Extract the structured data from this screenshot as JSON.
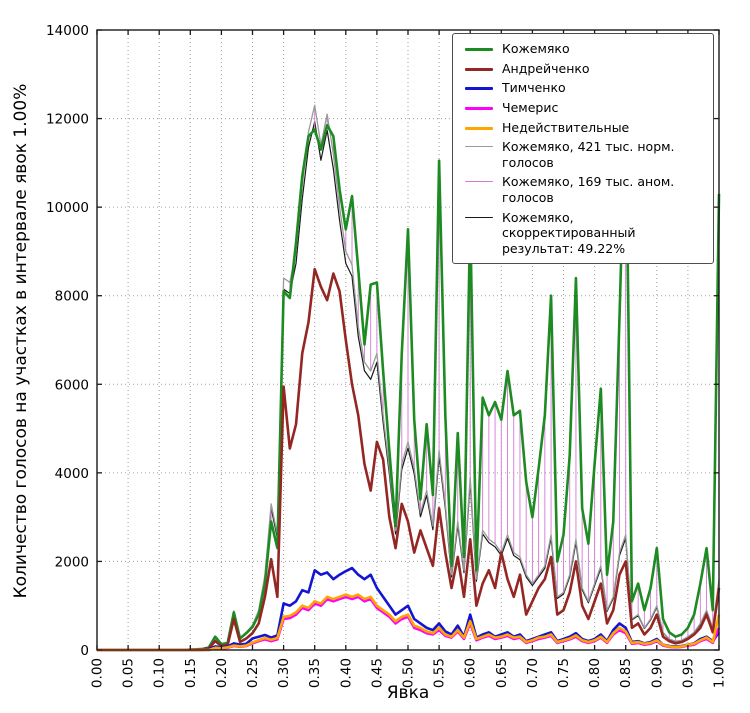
{
  "figure": {
    "xlabel": "Явка",
    "ylabel": "Количество голосов на участках в интервале явок 1.00%"
  },
  "legend": {
    "items": [
      {
        "label": "Кожемяко",
        "color": "#1e8b22",
        "lw": 3
      },
      {
        "label": "Андрейченко",
        "color": "#942723",
        "lw": 3
      },
      {
        "label": "Тимченко",
        "color": "#1414d4",
        "lw": 3
      },
      {
        "label": "Чемерис",
        "color": "#ff00ff",
        "lw": 3
      },
      {
        "label": "Недействительные",
        "color": "#ffa500",
        "lw": 3
      },
      {
        "label": "Кожемяко, 421 тыс. норм. голосов",
        "color": "#9a9a9a",
        "lw": 1.5
      },
      {
        "label": "Кожемяко, 169 тыс. аном. голосов",
        "color": "#d678d6",
        "lw": 1.5
      },
      {
        "label": "Кожемяко, скорректированный результат: 49.22%",
        "color": "#1a1a1a",
        "lw": 1.5
      }
    ]
  },
  "chart_data": {
    "type": "line",
    "title": "",
    "xlabel": "Явка",
    "ylabel": "Количество голосов на участках в интервале явок 1.00%",
    "xlim": [
      0.0,
      1.0
    ],
    "ylim": [
      0,
      14000
    ],
    "grid": true,
    "legend_position": "upper right",
    "x_tick_labels": [
      "0.00",
      "0.05",
      "0.10",
      "0.15",
      "0.20",
      "0.25",
      "0.30",
      "0.35",
      "0.40",
      "0.45",
      "0.50",
      "0.55",
      "0.60",
      "0.65",
      "0.70",
      "0.75",
      "0.80",
      "0.85",
      "0.90",
      "0.95",
      "1.00"
    ],
    "y_ticks": [
      0,
      2000,
      4000,
      6000,
      8000,
      10000,
      12000,
      14000
    ],
    "x_start": 0.0,
    "x_step": 0.01,
    "anomalous_votes_note": "Кожемяко, 169 тыс. аном. голосов — вертикальные линии между кривыми нормальных и фактических голосов",
    "corrected_result_percent": 49.22,
    "normal_votes_thousands": 421,
    "anomalous_votes_thousands": 169,
    "series": [
      {
        "name": "Кожемяко",
        "color": "#1e8b22",
        "width": 2.6,
        "values": [
          0,
          0,
          0,
          0,
          0,
          0,
          0,
          0,
          0,
          0,
          0,
          0,
          0,
          0,
          0,
          10,
          15,
          25,
          60,
          300,
          130,
          160,
          850,
          260,
          380,
          520,
          800,
          1500,
          2900,
          2300,
          8100,
          7950,
          9200,
          10700,
          11600,
          11750,
          11300,
          11850,
          11600,
          10400,
          9500,
          10250,
          8600,
          6900,
          8250,
          8300,
          6300,
          4500,
          2800,
          6700,
          9500,
          5200,
          3400,
          5100,
          3500,
          11050,
          5300,
          1900,
          4900,
          2100,
          9800,
          1800,
          5700,
          5300,
          5600,
          5200,
          6300,
          5300,
          5400,
          3800,
          3000,
          4100,
          5300,
          8000,
          2000,
          2600,
          4400,
          8400,
          3200,
          2400,
          4200,
          5900,
          1700,
          2900,
          7500,
          12500,
          1100,
          1500,
          900,
          1400,
          2300,
          700,
          400,
          300,
          350,
          500,
          800,
          1500,
          2300,
          900,
          10300
        ]
      },
      {
        "name": "Андрейченко",
        "color": "#942723",
        "width": 2.6,
        "values": [
          0,
          0,
          0,
          0,
          0,
          0,
          0,
          0,
          0,
          0,
          0,
          0,
          0,
          0,
          0,
          5,
          10,
          15,
          40,
          200,
          90,
          110,
          700,
          180,
          260,
          380,
          600,
          1200,
          2050,
          1200,
          5950,
          4550,
          5100,
          6700,
          7400,
          8600,
          8200,
          7900,
          8500,
          8100,
          7000,
          6000,
          5300,
          4200,
          3600,
          4700,
          4300,
          3000,
          2300,
          3300,
          2900,
          2200,
          2700,
          2300,
          1900,
          3200,
          2200,
          1400,
          2100,
          1200,
          2500,
          1000,
          1500,
          1800,
          1400,
          2200,
          1600,
          1200,
          1700,
          800,
          1100,
          1400,
          1600,
          2100,
          800,
          900,
          1300,
          2000,
          1000,
          700,
          1100,
          1500,
          600,
          900,
          1700,
          2000,
          500,
          600,
          350,
          500,
          800,
          300,
          200,
          150,
          180,
          250,
          350,
          500,
          800,
          400,
          1400
        ]
      },
      {
        "name": "Тимченко",
        "color": "#1414d4",
        "width": 2.6,
        "values": [
          0,
          0,
          0,
          0,
          0,
          0,
          0,
          0,
          0,
          0,
          0,
          0,
          0,
          0,
          0,
          0,
          0,
          0,
          20,
          80,
          60,
          80,
          150,
          120,
          140,
          260,
          300,
          340,
          280,
          330,
          1050,
          1000,
          1100,
          1350,
          1300,
          1800,
          1700,
          1750,
          1600,
          1700,
          1780,
          1850,
          1700,
          1600,
          1700,
          1400,
          1200,
          1000,
          800,
          900,
          1000,
          700,
          600,
          500,
          450,
          600,
          420,
          350,
          550,
          300,
          800,
          280,
          350,
          400,
          300,
          350,
          400,
          300,
          350,
          200,
          250,
          300,
          350,
          400,
          200,
          250,
          300,
          380,
          250,
          200,
          250,
          350,
          200,
          450,
          600,
          500,
          180,
          200,
          150,
          180,
          250,
          120,
          90,
          80,
          90,
          120,
          150,
          250,
          300,
          200,
          400
        ]
      },
      {
        "name": "Чемерис",
        "color": "#ff00ff",
        "width": 2.6,
        "values": [
          0,
          0,
          0,
          0,
          0,
          0,
          0,
          0,
          0,
          0,
          0,
          0,
          0,
          0,
          0,
          0,
          0,
          0,
          0,
          40,
          30,
          50,
          90,
          70,
          90,
          150,
          200,
          240,
          200,
          240,
          700,
          720,
          800,
          950,
          900,
          1050,
          1000,
          1150,
          1100,
          1150,
          1200,
          1150,
          1200,
          1100,
          1150,
          950,
          850,
          750,
          600,
          700,
          750,
          500,
          450,
          380,
          350,
          450,
          320,
          280,
          420,
          250,
          600,
          220,
          280,
          320,
          250,
          280,
          320,
          250,
          280,
          160,
          200,
          250,
          280,
          320,
          160,
          200,
          240,
          300,
          200,
          160,
          200,
          280,
          160,
          350,
          450,
          380,
          140,
          160,
          120,
          140,
          200,
          100,
          70,
          60,
          70,
          100,
          120,
          200,
          250,
          160,
          500
        ]
      },
      {
        "name": "Недействительные",
        "color": "#ffa500",
        "width": 2.6,
        "values": [
          0,
          0,
          0,
          0,
          0,
          0,
          0,
          0,
          0,
          0,
          0,
          0,
          0,
          0,
          0,
          0,
          0,
          0,
          0,
          50,
          40,
          60,
          100,
          80,
          100,
          170,
          220,
          270,
          230,
          270,
          750,
          770,
          850,
          1000,
          950,
          1100,
          1050,
          1200,
          1150,
          1200,
          1250,
          1200,
          1250,
          1150,
          1200,
          1000,
          900,
          800,
          650,
          750,
          800,
          550,
          500,
          420,
          380,
          500,
          350,
          300,
          450,
          280,
          650,
          250,
          300,
          350,
          280,
          300,
          350,
          280,
          300,
          180,
          220,
          280,
          300,
          350,
          180,
          220,
          260,
          330,
          220,
          180,
          220,
          300,
          180,
          380,
          500,
          420,
          160,
          180,
          140,
          160,
          220,
          120,
          80,
          70,
          80,
          120,
          140,
          220,
          280,
          180,
          800
        ]
      },
      {
        "name": "Кожемяко, 421 тыс. норм. голосов",
        "color": "#9a9a9a",
        "width": 1.3,
        "values": [
          0,
          0,
          0,
          0,
          0,
          0,
          0,
          0,
          0,
          0,
          0,
          0,
          0,
          0,
          0,
          10,
          15,
          25,
          55,
          250,
          140,
          170,
          880,
          280,
          400,
          560,
          900,
          1700,
          3300,
          2600,
          8400,
          8300,
          9000,
          10500,
          11700,
          12300,
          11400,
          12100,
          11200,
          10000,
          9000,
          8700,
          7300,
          6500,
          6300,
          6700,
          5300,
          4100,
          2700,
          4200,
          4700,
          4100,
          3100,
          3600,
          2800,
          4500,
          3300,
          1700,
          2900,
          1800,
          3900,
          1600,
          2700,
          2500,
          2400,
          2200,
          2600,
          2200,
          2100,
          1700,
          1500,
          1700,
          1900,
          2600,
          1200,
          1300,
          1700,
          2500,
          1400,
          1100,
          1500,
          1900,
          900,
          1200,
          2200,
          2600,
          700,
          800,
          500,
          700,
          1000,
          400,
          250,
          200,
          220,
          300,
          400,
          600,
          900,
          500,
          1600
        ]
      },
      {
        "name": "Кожемяко, 169 тыс. аном. голосов",
        "color": "#d678d6",
        "width": 0.9,
        "render": "vlines-between",
        "from_series": 5,
        "to_series": 0
      },
      {
        "name": "Кожемяко, скорректированный результат: 49.22%",
        "color": "#1a1a1a",
        "width": 1.2,
        "render": "derived",
        "from_series": 5,
        "scale": 0.97
      }
    ]
  }
}
